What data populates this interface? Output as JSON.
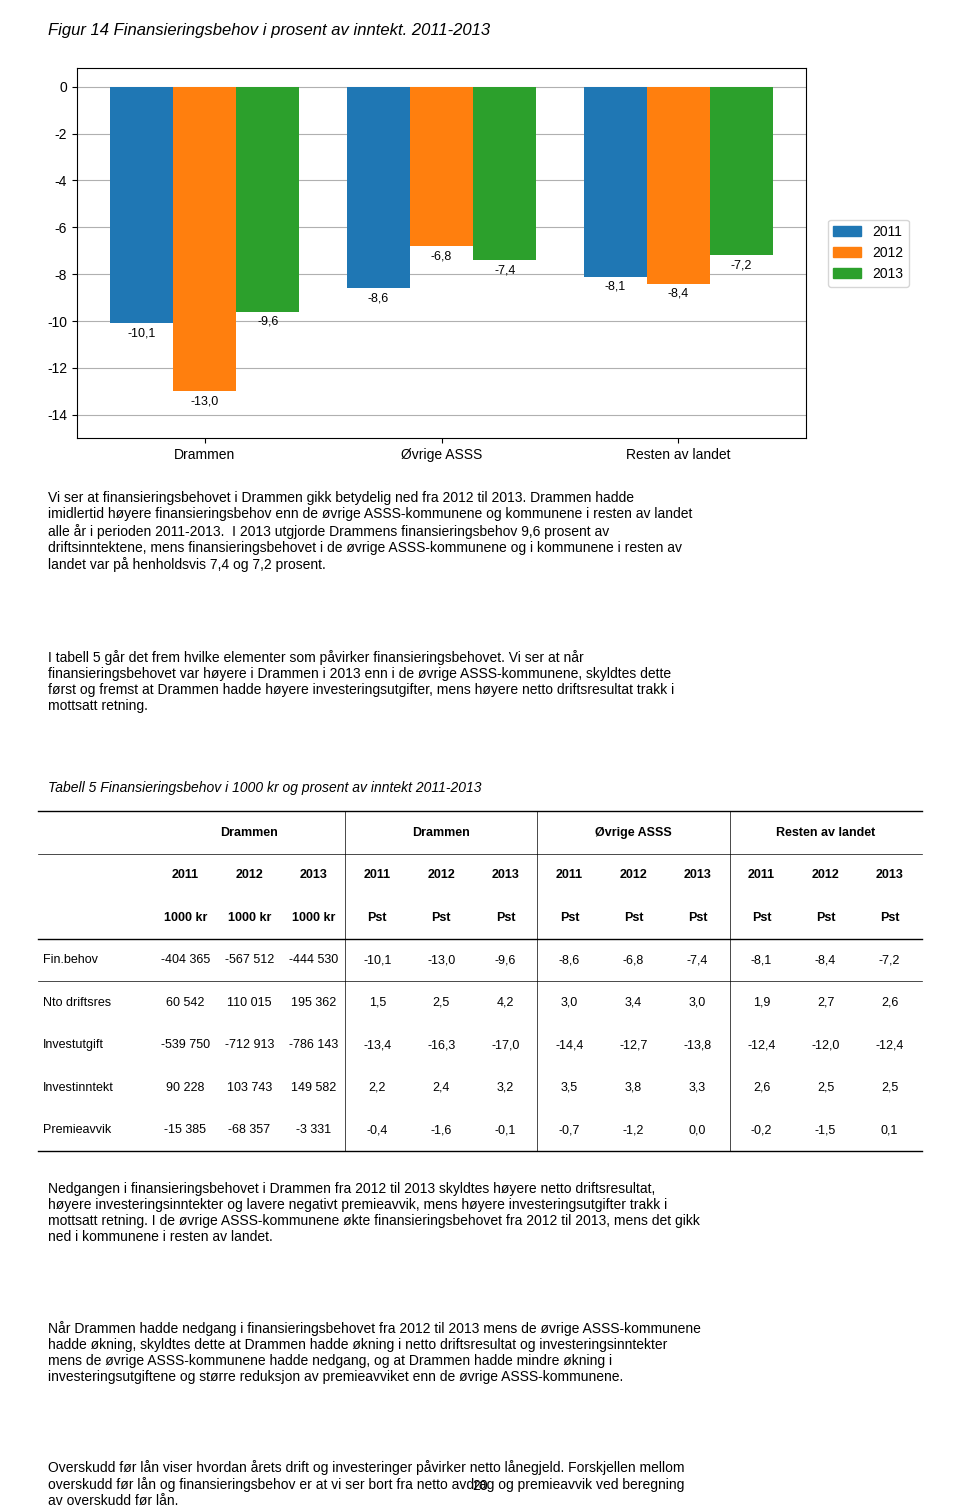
{
  "chart_data": {
    "type": "bar",
    "title": "Figur 14 Finansieringsbehov i prosent av inntekt. 2011-2013",
    "categories": [
      "Drammen",
      "Øvrige ASSS",
      "Resten av landet"
    ],
    "series": [
      {
        "name": "2011",
        "values": [
          -10.1,
          -8.6,
          -8.1
        ],
        "value_labels": [
          "-10,1",
          "-8,6",
          "-8,1"
        ]
      },
      {
        "name": "2012",
        "values": [
          -13.0,
          -6.8,
          -8.4
        ],
        "value_labels": [
          "-13,0",
          "-6,8",
          "-8,4"
        ]
      },
      {
        "name": "2013",
        "values": [
          -9.6,
          -7.4,
          -7.2
        ],
        "value_labels": [
          "-9,6",
          "-7,4",
          "-7,2"
        ]
      }
    ],
    "ylim": [
      -15,
      0.8
    ],
    "yticks": [
      0,
      -2,
      -4,
      -6,
      -8,
      -10,
      -12,
      -14
    ],
    "grid": true,
    "legend": "right",
    "data_labels": true,
    "paragraphs_before_table": [
      "Vi ser at finansieringsbehovet i Drammen gikk betydelig ned fra 2012 til 2013. Drammen hadde\nimidlertid høyere finansieringsbehov enn de øvrige ASSS-kommunene og kommunene i resten av landet\nalle år i perioden 2011-2013.  I 2013 utgjorde Drammens finansieringsbehov 9,6 prosent av\ndriftsinntektene, mens finansieringsbehovet i de øvrige ASSS-kommunene og i kommunene i resten av\nlandet var på henholdsvis 7,4 og 7,2 prosent.",
      "I tabell 5 går det frem hvilke elementer som påvirker finansieringsbehovet. Vi ser at når\nfinansieringsbehovet var høyere i Drammen i 2013 enn i de øvrige ASSS-kommunene, skyldtes dette\nførst og fremst at Drammen hadde høyere investeringsutgifter, mens høyere netto driftsresultat trakk i\nmottsatt retning."
    ],
    "table": {
      "title": "Tabell 5 Finansieringsbehov i 1000 kr og prosent av inntekt 2011-2013",
      "header": [
        [
          null,
          "Drammen",
          null,
          null,
          "Drammen",
          null,
          null,
          "Øvrige ASSS",
          null,
          null,
          "Resten av landet",
          null,
          null
        ],
        [
          null,
          "2011",
          "2012",
          "2013",
          "2011",
          "2012",
          "2013",
          "2011",
          "2012",
          "2013",
          "2011",
          "2012",
          "2013"
        ],
        [
          null,
          "1000 kr",
          "1000 kr",
          "1000 kr",
          "Pst",
          "Pst",
          "Pst",
          "Pst",
          "Pst",
          "Pst",
          "Pst",
          "Pst",
          "Pst"
        ]
      ],
      "rows": [
        [
          "Fin.behov",
          "-404 365",
          "-567 512",
          "-444 530",
          "-10,1",
          "-13,0",
          "-9,6",
          "-8,6",
          "-6,8",
          "-7,4",
          "-8,1",
          "-8,4",
          "-7,2"
        ],
        [
          "Nto driftsres",
          "60 542",
          "110 015",
          "195 362",
          "1,5",
          "2,5",
          "4,2",
          "3,0",
          "3,4",
          "3,0",
          "1,9",
          "2,7",
          "2,6"
        ],
        [
          "Investutgift",
          "-539 750",
          "-712 913",
          "-786 143",
          "-13,4",
          "-16,3",
          "-17,0",
          "-14,4",
          "-12,7",
          "-13,8",
          "-12,4",
          "-12,0",
          "-12,4"
        ],
        [
          "Investinntekt",
          "90 228",
          "103 743",
          "149 582",
          "2,2",
          "2,4",
          "3,2",
          "3,5",
          "3,8",
          "3,3",
          "2,6",
          "2,5",
          "2,5"
        ],
        [
          "Premieavvik",
          "-15 385",
          "-68 357",
          "-3 331",
          "-0,4",
          "-1,6",
          "-0,1",
          "-0,7",
          "-1,2",
          "0,0",
          "-0,2",
          "-1,5",
          "0,1"
        ]
      ]
    },
    "paragraphs_after_table": [
      "Nedgangen i finansieringsbehovet i Drammen fra 2012 til 2013 skyldtes høyere netto driftsresultat,\nhøyere investeringsinntekter og lavere negativt premieavvik, mens høyere investeringsutgifter trakk i\nmottsatt retning. I de øvrige ASSS-kommunene økte finansieringsbehovet fra 2012 til 2013, mens det gikk\nned i kommunene i resten av landet.",
      "Når Drammen hadde nedgang i finansieringsbehovet fra 2012 til 2013 mens de øvrige ASSS-kommunene\nhadde økning, skyldtes dette at Drammen hadde økning i netto driftsresultat og investeringsinntekter\nmens de øvrige ASSS-kommunene hadde nedgang, og at Drammen hadde mindre økning i\ninvesteringsutgiftene og større reduksjon av premieavviket enn de øvrige ASSS-kommunene.",
      "Overskudd før lån viser hvordan årets drift og investeringer påvirker netto lånegjeld. Forskjellen mellom\noverskudd før lån og finansieringsbehov er at vi ser bort fra netto avdrag og premieavvik ved beregning\nav overskudd før lån."
    ],
    "page_number": "20"
  }
}
